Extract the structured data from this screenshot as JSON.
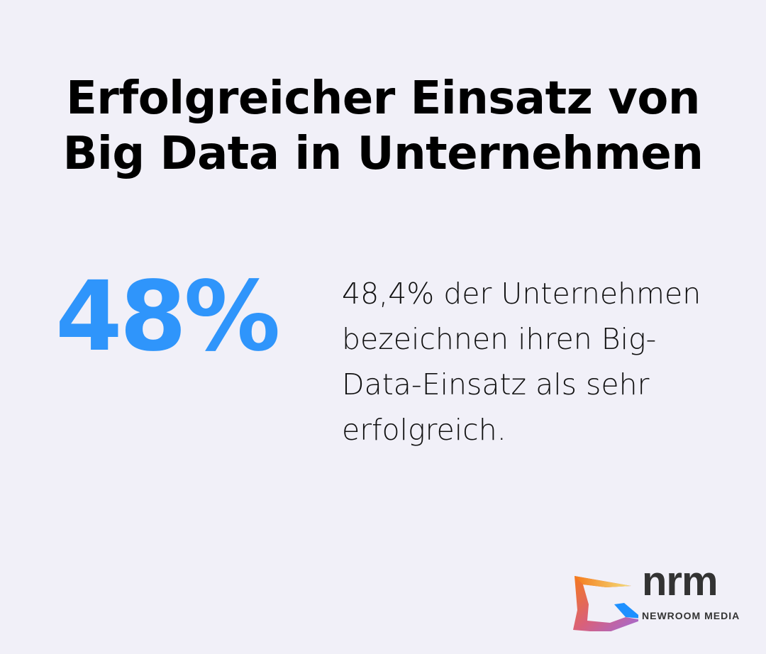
{
  "title": {
    "line1": "Erfolgreicher Einsatz von",
    "line2": "Big Data in Unternehmen"
  },
  "stat": {
    "value": "48%",
    "description": "48,4% der Unternehmen bezeichnen ihren Big-Data-Einsatz als sehr erfolgreich."
  },
  "logo": {
    "name": "nrm",
    "subtitle": "NEWROOM MEDIA"
  },
  "colors": {
    "background": "#f1f0f8",
    "accent": "#2f95fb",
    "text": "#000000"
  }
}
